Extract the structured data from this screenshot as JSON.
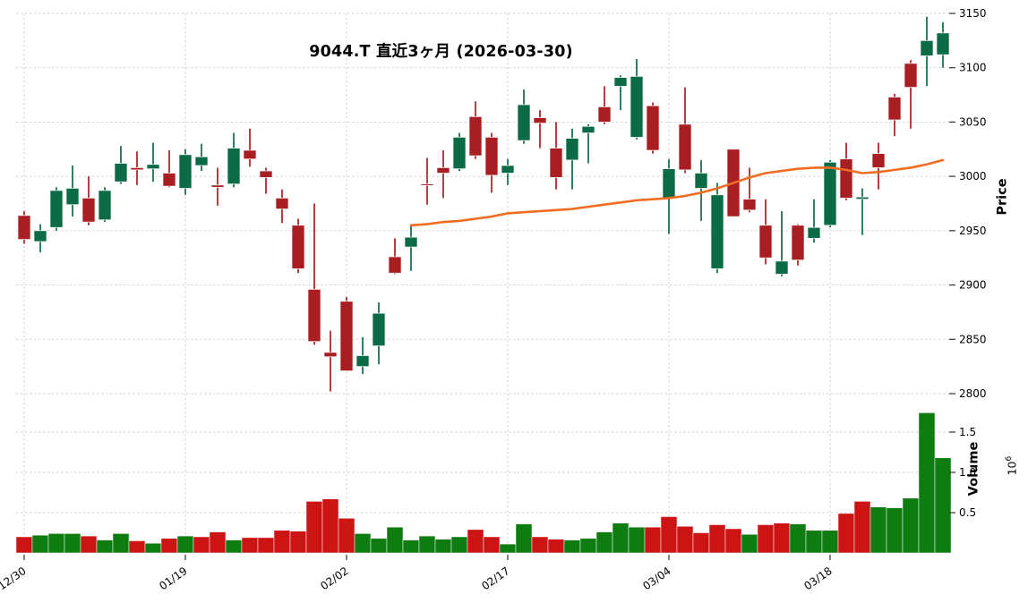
{
  "chart_data": {
    "type": "candlestick_with_volume",
    "title": "9044.T 直近3ヶ月 (2026-03-30)",
    "grid": true,
    "colors": {
      "up": "#0b6b46",
      "down": "#a81e23",
      "volume_up": "#0e7c10",
      "volume_down": "#cc1414",
      "ma_line": "#f26c21",
      "grid": "#cfcfcf",
      "text": "#000000",
      "background": "#ffffff"
    },
    "price_axis": {
      "label": "Price",
      "side": "right",
      "ticks": [
        2800,
        2850,
        2900,
        2950,
        3000,
        3050,
        3100,
        3150
      ],
      "range": [
        2800,
        3150
      ]
    },
    "volume_axis": {
      "label": "Volume",
      "unit_base": "10",
      "unit_exponent": "6",
      "side": "right",
      "ticks": [
        0.5,
        1.0,
        1.5
      ],
      "range": [
        0,
        1.9
      ]
    },
    "x_axis": {
      "tick_labels": [
        "12/30",
        "01/19",
        "02/02",
        "02/17",
        "03/04",
        "03/18"
      ],
      "tick_indices": [
        0,
        10,
        20,
        30,
        40,
        50
      ],
      "label_rotation_deg": -35
    },
    "moving_average": {
      "start_index": 24,
      "values": [
        2955,
        2956,
        2958,
        2959,
        2961,
        2963,
        2966,
        2967,
        2968,
        2969,
        2970,
        2972,
        2974,
        2976,
        2978,
        2979,
        2980,
        2982,
        2985,
        2989,
        2994,
        2999,
        3003,
        3005,
        3007,
        3008,
        3008,
        3006,
        3003,
        3004,
        3006,
        3008,
        3011,
        3015
      ]
    },
    "candles": {
      "columns": [
        "open",
        "high",
        "low",
        "close",
        "volume_millions",
        "volume_color"
      ],
      "rows": [
        [
          2964,
          2968,
          2938,
          2942,
          0.2,
          "r"
        ],
        [
          2940,
          2956,
          2930,
          2950,
          0.22,
          "g"
        ],
        [
          2953,
          2990,
          2950,
          2987,
          0.24,
          "g"
        ],
        [
          2974,
          3010,
          2963,
          2989,
          0.24,
          "g"
        ],
        [
          2980,
          3000,
          2955,
          2958,
          0.21,
          "r"
        ],
        [
          2960,
          2990,
          2958,
          2987,
          0.16,
          "g"
        ],
        [
          2995,
          3028,
          2993,
          3012,
          0.24,
          "g"
        ],
        [
          3008,
          3023,
          2992,
          3006,
          0.15,
          "r"
        ],
        [
          3007,
          3031,
          2995,
          3011,
          0.12,
          "g"
        ],
        [
          3003,
          3024,
          2990,
          2991,
          0.18,
          "r"
        ],
        [
          2989,
          3025,
          2983,
          3020,
          0.21,
          "g"
        ],
        [
          3010,
          3030,
          3005,
          3018,
          0.2,
          "r"
        ],
        [
          2992,
          3008,
          2973,
          2990,
          0.26,
          "r"
        ],
        [
          2993,
          3040,
          2990,
          3026,
          0.16,
          "g"
        ],
        [
          3024,
          3044,
          3009,
          3016,
          0.19,
          "r"
        ],
        [
          3005,
          3008,
          2984,
          2999,
          0.19,
          "r"
        ],
        [
          2980,
          2988,
          2957,
          2970,
          0.28,
          "r"
        ],
        [
          2955,
          2961,
          2911,
          2915,
          0.27,
          "r"
        ],
        [
          2896,
          2975,
          2845,
          2848,
          0.64,
          "r"
        ],
        [
          2838,
          2858,
          2802,
          2834,
          0.67,
          "r"
        ],
        [
          2885,
          2889,
          2821,
          2821,
          0.43,
          "r"
        ],
        [
          2825,
          2852,
          2818,
          2835,
          0.24,
          "g"
        ],
        [
          2844,
          2884,
          2827,
          2874,
          0.18,
          "g"
        ],
        [
          2926,
          2943,
          2910,
          2911,
          0.32,
          "g"
        ],
        [
          2935,
          2954,
          2913,
          2944,
          0.16,
          "g"
        ],
        [
          2993,
          3017,
          2974,
          2992,
          0.21,
          "g"
        ],
        [
          3008,
          3024,
          2980,
          3003,
          0.17,
          "g"
        ],
        [
          3007,
          3040,
          3005,
          3036,
          0.2,
          "g"
        ],
        [
          3055,
          3069,
          3016,
          3019,
          0.29,
          "r"
        ],
        [
          3036,
          3040,
          2985,
          3001,
          0.2,
          "r"
        ],
        [
          3003,
          3016,
          2992,
          3010,
          0.11,
          "g"
        ],
        [
          3033,
          3080,
          3030,
          3066,
          0.36,
          "g"
        ],
        [
          3054,
          3061,
          3026,
          3049,
          0.2,
          "r"
        ],
        [
          3026,
          3050,
          2988,
          2999,
          0.17,
          "r"
        ],
        [
          3015,
          3044,
          2988,
          3035,
          0.16,
          "g"
        ],
        [
          3040,
          3048,
          3012,
          3046,
          0.18,
          "g"
        ],
        [
          3064,
          3083,
          3048,
          3050,
          0.26,
          "g"
        ],
        [
          3083,
          3093,
          3061,
          3091,
          0.37,
          "g"
        ],
        [
          3036,
          3108,
          3034,
          3092,
          0.32,
          "g"
        ],
        [
          3065,
          3068,
          3021,
          3024,
          0.32,
          "r"
        ],
        [
          2980,
          3016,
          2947,
          3007,
          0.45,
          "r"
        ],
        [
          3048,
          3082,
          3003,
          3006,
          0.33,
          "r"
        ],
        [
          2989,
          3015,
          2959,
          3003,
          0.25,
          "r"
        ],
        [
          2915,
          2994,
          2911,
          2983,
          0.35,
          "r"
        ],
        [
          3025,
          3025,
          2963,
          2963,
          0.3,
          "r"
        ],
        [
          2979,
          3008,
          2967,
          2969,
          0.23,
          "g"
        ],
        [
          2955,
          2979,
          2919,
          2925,
          0.35,
          "r"
        ],
        [
          2910,
          2968,
          2908,
          2922,
          0.37,
          "r"
        ],
        [
          2955,
          2956,
          2918,
          2923,
          0.36,
          "g"
        ],
        [
          2943,
          2979,
          2939,
          2953,
          0.28,
          "g"
        ],
        [
          2955,
          3015,
          2953,
          3013,
          0.28,
          "g"
        ],
        [
          3016,
          3031,
          2978,
          2980,
          0.49,
          "r"
        ],
        [
          2979,
          2989,
          2946,
          2981,
          0.64,
          "r"
        ],
        [
          3021,
          3031,
          2988,
          3008,
          0.57,
          "g"
        ],
        [
          3073,
          3076,
          3037,
          3052,
          0.56,
          "g"
        ],
        [
          3104,
          3107,
          3044,
          3082,
          0.68,
          "g"
        ],
        [
          3111,
          3147,
          3083,
          3125,
          1.74,
          "g"
        ],
        [
          3112,
          3142,
          3100,
          3132,
          1.18,
          "g"
        ]
      ]
    }
  }
}
